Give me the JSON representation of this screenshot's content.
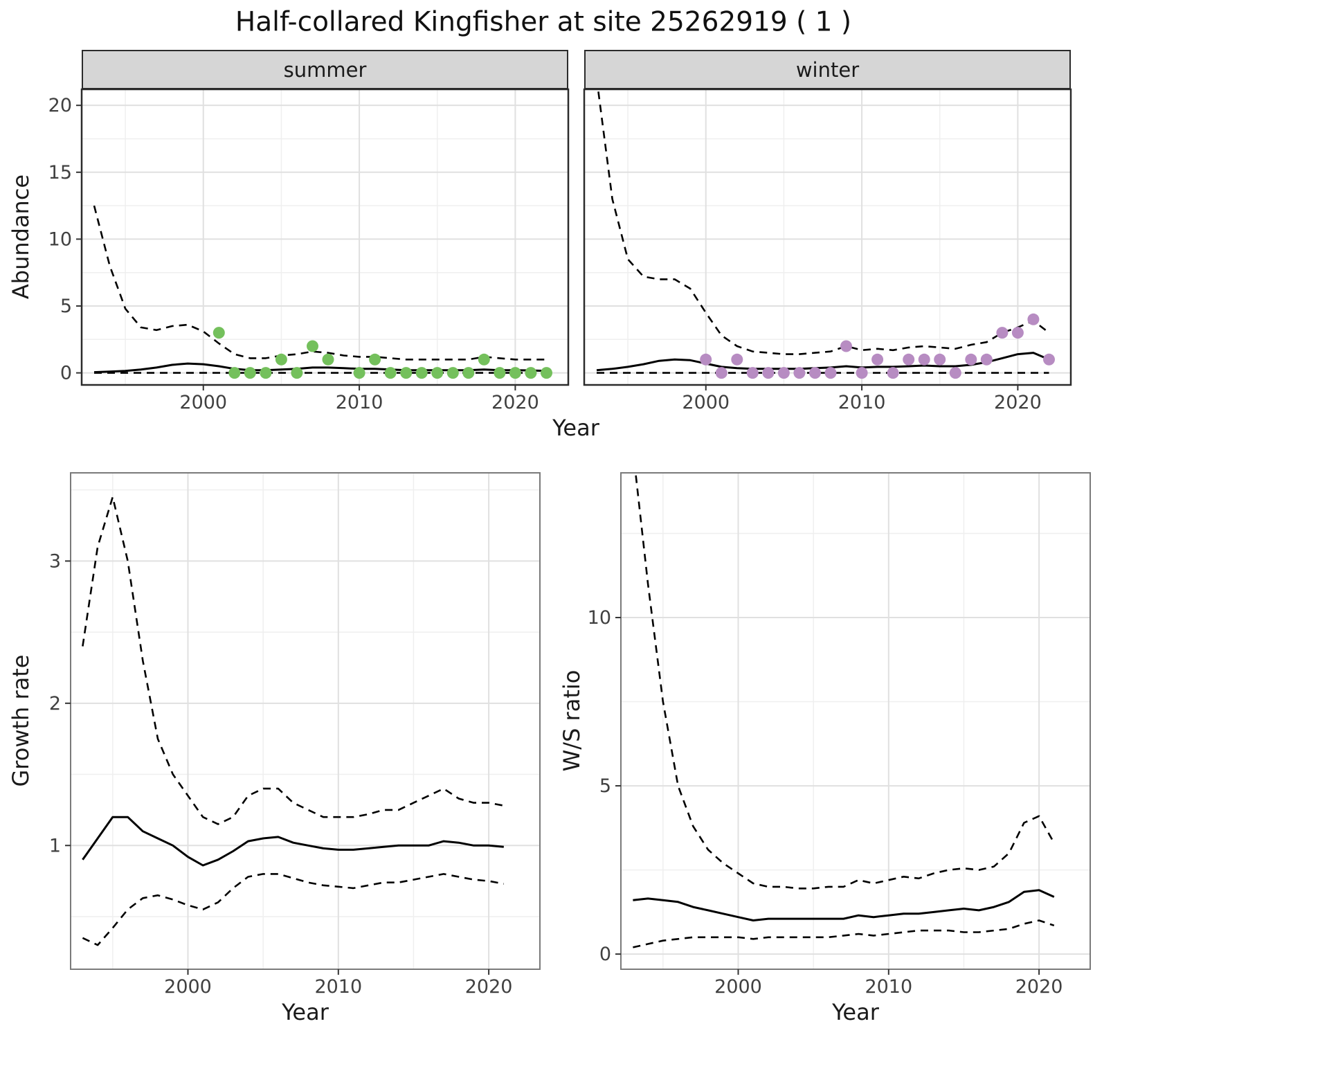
{
  "title": "Half-collared Kingfisher at site 25262919 ( 1 )",
  "labels": {
    "year": "Year",
    "abundance": "Abundance",
    "growth_rate": "Growth rate",
    "ws_ratio": "W/S ratio"
  },
  "colors": {
    "summer_points": "#74c05c",
    "winter_points": "#b78cc2",
    "line": "#000000",
    "grid_major": "#e0e0e0",
    "grid_minor": "#efefef",
    "strip_bg": "#d6d6d6",
    "panel_border": "#2b2b2b",
    "tick_text": "#404040"
  },
  "chart_data": [
    {
      "id": "abundance-summer",
      "type": "line",
      "facet": "summer",
      "xlabel": "Year",
      "ylabel": "Abundance",
      "x": [
        1993,
        1994,
        1995,
        1996,
        1997,
        1998,
        1999,
        2000,
        2001,
        2002,
        2003,
        2004,
        2005,
        2006,
        2007,
        2008,
        2009,
        2010,
        2011,
        2012,
        2013,
        2014,
        2015,
        2016,
        2017,
        2018,
        2019,
        2020,
        2021,
        2022
      ],
      "series": [
        {
          "name": "upper_95ci",
          "style": "dashed",
          "values": [
            12.5,
            8.0,
            4.8,
            3.4,
            3.2,
            3.5,
            3.6,
            3.1,
            2.2,
            1.4,
            1.1,
            1.1,
            1.3,
            1.4,
            1.6,
            1.5,
            1.3,
            1.2,
            1.2,
            1.1,
            1.0,
            1.0,
            1.0,
            1.0,
            1.0,
            1.2,
            1.1,
            1.0,
            1.0,
            1.0
          ]
        },
        {
          "name": "estimate",
          "style": "solid",
          "values": [
            0.05,
            0.1,
            0.15,
            0.25,
            0.4,
            0.6,
            0.7,
            0.65,
            0.5,
            0.3,
            0.2,
            0.2,
            0.25,
            0.3,
            0.4,
            0.4,
            0.35,
            0.3,
            0.3,
            0.25,
            0.2,
            0.2,
            0.2,
            0.2,
            0.2,
            0.25,
            0.2,
            0.2,
            0.18,
            0.15
          ]
        },
        {
          "name": "lower_95ci",
          "style": "dashed",
          "values": [
            0,
            0,
            0,
            0,
            0,
            0,
            0,
            0,
            0,
            0,
            0,
            0,
            0,
            0,
            0,
            0,
            0,
            0,
            0,
            0,
            0,
            0,
            0,
            0,
            0,
            0,
            0,
            0,
            0,
            0
          ]
        }
      ],
      "points": {
        "name": "observed-counts",
        "color": "#74c05c",
        "x": [
          2001,
          2002,
          2003,
          2004,
          2005,
          2006,
          2007,
          2008,
          2010,
          2011,
          2012,
          2013,
          2014,
          2015,
          2016,
          2017,
          2018,
          2019,
          2020,
          2021,
          2022
        ],
        "y": [
          3,
          0,
          0,
          0,
          1,
          0,
          2,
          1,
          0,
          1,
          0,
          0,
          0,
          0,
          0,
          0,
          1,
          0,
          0,
          0,
          0
        ]
      },
      "axes": {
        "xlim": [
          1992.2,
          2023.4
        ],
        "ylim": [
          -0.9,
          21.2
        ],
        "xticks": [
          2000,
          2010,
          2020
        ],
        "xticks_minor": [
          1995,
          2005,
          2015
        ],
        "yticks": [
          0,
          5,
          10,
          15,
          20
        ],
        "yticks_minor": [
          2.5,
          7.5,
          12.5,
          17.5
        ]
      }
    },
    {
      "id": "abundance-winter",
      "type": "line",
      "facet": "winter",
      "xlabel": "Year",
      "ylabel": "Abundance",
      "x": [
        1993,
        1994,
        1995,
        1996,
        1997,
        1998,
        1999,
        2000,
        2001,
        2002,
        2003,
        2004,
        2005,
        2006,
        2007,
        2008,
        2009,
        2010,
        2011,
        2012,
        2013,
        2014,
        2015,
        2016,
        2017,
        2018,
        2019,
        2020,
        2021,
        2022
      ],
      "series": [
        {
          "name": "upper_95ci",
          "style": "dashed",
          "values": [
            22,
            13,
            8.5,
            7.2,
            7.0,
            7.0,
            6.3,
            4.5,
            2.8,
            2.0,
            1.6,
            1.5,
            1.4,
            1.4,
            1.5,
            1.6,
            2.0,
            1.7,
            1.8,
            1.7,
            1.9,
            2.0,
            1.9,
            1.8,
            2.1,
            2.3,
            3.0,
            3.4,
            3.9,
            3.0
          ]
        },
        {
          "name": "estimate",
          "style": "solid",
          "values": [
            0.2,
            0.3,
            0.45,
            0.65,
            0.9,
            1.0,
            0.95,
            0.7,
            0.45,
            0.35,
            0.3,
            0.3,
            0.3,
            0.3,
            0.35,
            0.4,
            0.5,
            0.4,
            0.45,
            0.45,
            0.5,
            0.55,
            0.5,
            0.5,
            0.6,
            0.8,
            1.1,
            1.4,
            1.5,
            1.0
          ]
        },
        {
          "name": "lower_95ci",
          "style": "dashed",
          "values": [
            0,
            0,
            0,
            0,
            0,
            0,
            0,
            0,
            0,
            0,
            0,
            0,
            0,
            0,
            0,
            0,
            0,
            0,
            0,
            0,
            0,
            0,
            0,
            0,
            0,
            0,
            0,
            0,
            0,
            0
          ]
        }
      ],
      "points": {
        "name": "observed-counts",
        "color": "#b78cc2",
        "x": [
          2000,
          2001,
          2002,
          2003,
          2004,
          2005,
          2006,
          2007,
          2008,
          2009,
          2010,
          2011,
          2012,
          2013,
          2014,
          2015,
          2016,
          2017,
          2018,
          2019,
          2020,
          2021,
          2022
        ],
        "y": [
          1,
          0,
          1,
          0,
          0,
          0,
          0,
          0,
          0,
          2,
          0,
          1,
          0,
          1,
          1,
          1,
          0,
          1,
          1,
          3,
          3,
          4,
          1
        ]
      },
      "axes": {
        "xlim": [
          1992.2,
          2023.4
        ],
        "ylim": [
          -0.9,
          21.2
        ],
        "xticks": [
          2000,
          2010,
          2020
        ],
        "xticks_minor": [
          1995,
          2005,
          2015
        ],
        "yticks": [
          0,
          5,
          10,
          15,
          20
        ],
        "yticks_minor": [
          2.5,
          7.5,
          12.5,
          17.5
        ]
      }
    },
    {
      "id": "growth-rate",
      "type": "line",
      "facet": "",
      "xlabel": "Year",
      "ylabel": "Growth rate",
      "x": [
        1993,
        1994,
        1995,
        1996,
        1997,
        1998,
        1999,
        2000,
        2001,
        2002,
        2003,
        2004,
        2005,
        2006,
        2007,
        2008,
        2009,
        2010,
        2011,
        2012,
        2013,
        2014,
        2015,
        2016,
        2017,
        2018,
        2019,
        2020,
        2021
      ],
      "series": [
        {
          "name": "upper_95ci",
          "style": "dashed",
          "values": [
            2.4,
            3.1,
            3.45,
            3.0,
            2.3,
            1.75,
            1.5,
            1.35,
            1.2,
            1.15,
            1.2,
            1.35,
            1.4,
            1.4,
            1.3,
            1.25,
            1.2,
            1.2,
            1.2,
            1.22,
            1.25,
            1.25,
            1.3,
            1.35,
            1.4,
            1.33,
            1.3,
            1.3,
            1.28
          ]
        },
        {
          "name": "estimate",
          "style": "solid",
          "values": [
            0.9,
            1.05,
            1.2,
            1.2,
            1.1,
            1.05,
            1.0,
            0.92,
            0.86,
            0.9,
            0.96,
            1.03,
            1.05,
            1.06,
            1.02,
            1.0,
            0.98,
            0.97,
            0.97,
            0.98,
            0.99,
            1.0,
            1.0,
            1.0,
            1.03,
            1.02,
            1.0,
            1.0,
            0.99
          ]
        },
        {
          "name": "lower_95ci",
          "style": "dashed",
          "values": [
            0.35,
            0.3,
            0.42,
            0.55,
            0.63,
            0.65,
            0.62,
            0.58,
            0.55,
            0.6,
            0.7,
            0.78,
            0.8,
            0.8,
            0.77,
            0.74,
            0.72,
            0.71,
            0.7,
            0.72,
            0.74,
            0.74,
            0.76,
            0.78,
            0.8,
            0.78,
            0.76,
            0.75,
            0.73
          ]
        }
      ],
      "axes": {
        "xlim": [
          1992.2,
          2023.4
        ],
        "ylim": [
          0.13,
          3.62
        ],
        "xticks": [
          2000,
          2010,
          2020
        ],
        "xticks_minor": [
          1995,
          2005,
          2015
        ],
        "yticks": [
          1,
          2,
          3
        ],
        "yticks_minor": [
          0.5,
          1.5,
          2.5,
          3.5
        ]
      }
    },
    {
      "id": "ws-ratio",
      "type": "line",
      "facet": "",
      "xlabel": "Year",
      "ylabel": "W/S ratio",
      "x": [
        1993,
        1994,
        1995,
        1996,
        1997,
        1998,
        1999,
        2000,
        2001,
        2002,
        2003,
        2004,
        2005,
        2006,
        2007,
        2008,
        2009,
        2010,
        2011,
        2012,
        2013,
        2014,
        2015,
        2016,
        2017,
        2018,
        2019,
        2020,
        2021
      ],
      "series": [
        {
          "name": "upper_95ci",
          "style": "dashed",
          "values": [
            15,
            11,
            7.5,
            5.0,
            3.8,
            3.1,
            2.7,
            2.4,
            2.1,
            2.0,
            2.0,
            1.95,
            1.95,
            2.0,
            2.0,
            2.2,
            2.1,
            2.2,
            2.3,
            2.25,
            2.4,
            2.5,
            2.55,
            2.5,
            2.6,
            3.0,
            3.9,
            4.1,
            3.3
          ]
        },
        {
          "name": "estimate",
          "style": "solid",
          "values": [
            1.6,
            1.65,
            1.6,
            1.55,
            1.4,
            1.3,
            1.2,
            1.1,
            1.0,
            1.05,
            1.05,
            1.05,
            1.05,
            1.05,
            1.05,
            1.15,
            1.1,
            1.15,
            1.2,
            1.2,
            1.25,
            1.3,
            1.35,
            1.3,
            1.4,
            1.55,
            1.85,
            1.9,
            1.7
          ]
        },
        {
          "name": "lower_95ci",
          "style": "dashed",
          "values": [
            0.2,
            0.3,
            0.4,
            0.45,
            0.5,
            0.5,
            0.5,
            0.5,
            0.45,
            0.5,
            0.5,
            0.5,
            0.5,
            0.5,
            0.55,
            0.6,
            0.55,
            0.6,
            0.65,
            0.7,
            0.7,
            0.7,
            0.65,
            0.65,
            0.7,
            0.75,
            0.9,
            1.0,
            0.85
          ]
        }
      ],
      "axes": {
        "xlim": [
          1992.2,
          2023.4
        ],
        "ylim": [
          -0.45,
          14.3
        ],
        "xticks": [
          2000,
          2010,
          2020
        ],
        "xticks_minor": [
          1995,
          2005,
          2015
        ],
        "yticks": [
          0,
          5,
          10
        ],
        "yticks_minor": [
          2.5,
          7.5,
          12.5
        ]
      }
    }
  ]
}
